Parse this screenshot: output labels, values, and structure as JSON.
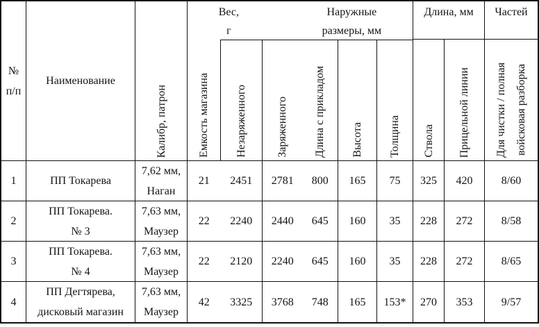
{
  "table": {
    "header": {
      "num": "№\nп/п",
      "name": "Наименование",
      "caliber": "Калибр, патрон",
      "weight_group": "Вес, г",
      "outer_dims_group": "Наружные\nразмеры, мм",
      "length_group": "Длина, мм",
      "parts_group": "Частей",
      "magazine": "Емкость магазина",
      "unloaded": "Незаряженного",
      "loaded": "Заряженного",
      "length_with_stock": "Длина с прикладом",
      "height": "Высота",
      "thickness": "Толщина",
      "barrel": "Ствола",
      "sight_line": "Прицельной линии",
      "parts_detail": "Для чистки / полная\nвойсковая разборка"
    },
    "rows": [
      {
        "num": "1",
        "name": "ПП Токарева",
        "caliber": "7,62 мм,\nНаган",
        "magazine": "21",
        "unloaded": "2451",
        "loaded": "2781",
        "length_with_stock": "800",
        "height": "165",
        "thickness": "75",
        "barrel": "325",
        "sight_line": "420",
        "parts": "8/60"
      },
      {
        "num": "2",
        "name": "ПП Токарева.\n№ 3",
        "caliber": "7,63 мм,\nМаузер",
        "magazine": "22",
        "unloaded": "2240",
        "loaded": "2440",
        "length_with_stock": "645",
        "height": "160",
        "thickness": "35",
        "barrel": "228",
        "sight_line": "272",
        "parts": "8/58"
      },
      {
        "num": "3",
        "name": "ПП Токарева.\n№ 4",
        "caliber": "7,63 мм,\nМаузер",
        "magazine": "22",
        "unloaded": "2120",
        "loaded": "2240",
        "length_with_stock": "645",
        "height": "160",
        "thickness": "35",
        "barrel": "228",
        "sight_line": "272",
        "parts": "8/65"
      },
      {
        "num": "4",
        "name": "ПП Дегтярева,\nдисковый магазин",
        "caliber": "7,63 мм,\nМаузер",
        "magazine": "42",
        "unloaded": "3325",
        "loaded": "3768",
        "length_with_stock": "748",
        "height": "165",
        "thickness": "153*",
        "barrel": "270",
        "sight_line": "353",
        "parts": "9/57"
      }
    ]
  }
}
